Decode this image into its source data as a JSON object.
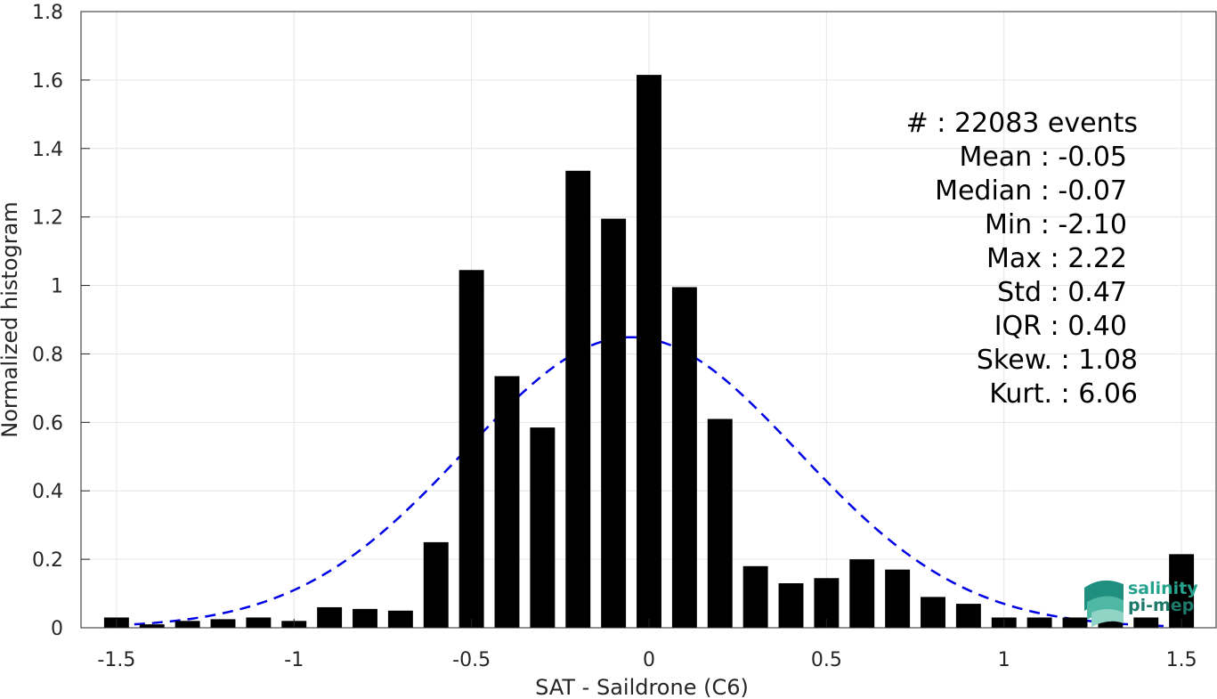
{
  "chart_data": {
    "type": "bar",
    "xlabel": "SAT - Saildrone (C6)",
    "ylabel": "Normalized histogram",
    "xlim": [
      -1.6,
      1.6
    ],
    "ylim": [
      0,
      1.8
    ],
    "xticks": [
      -1.5,
      -1,
      -0.5,
      0,
      0.5,
      1,
      1.5
    ],
    "xtick_labels": [
      "-1.5",
      "-1",
      "-0.5",
      "0",
      "0.5",
      "1",
      "1.5"
    ],
    "yticks": [
      0,
      0.2,
      0.4,
      0.6,
      0.8,
      1,
      1.2,
      1.4,
      1.6,
      1.8
    ],
    "ytick_labels": [
      "0",
      "0.2",
      "0.4",
      "0.6",
      "0.8",
      "1",
      "1.2",
      "1.4",
      "1.6",
      "1.8"
    ],
    "grid": true,
    "bar_width": 0.07,
    "bar_color": "#000000",
    "x": [
      -1.5,
      -1.4,
      -1.3,
      -1.2,
      -1.1,
      -1.0,
      -0.9,
      -0.8,
      -0.7,
      -0.6,
      -0.5,
      -0.4,
      -0.3,
      -0.2,
      -0.1,
      0.0,
      0.1,
      0.2,
      0.3,
      0.4,
      0.5,
      0.6,
      0.7,
      0.8,
      0.9,
      1.0,
      1.1,
      1.2,
      1.3,
      1.4,
      1.5
    ],
    "values": [
      0.03,
      0.01,
      0.02,
      0.025,
      0.03,
      0.02,
      0.06,
      0.055,
      0.05,
      0.25,
      1.045,
      0.735,
      0.585,
      1.335,
      1.195,
      1.615,
      0.995,
      0.61,
      0.18,
      0.13,
      0.145,
      0.2,
      0.17,
      0.09,
      0.07,
      0.03,
      0.03,
      0.03,
      0.04,
      0.03,
      0.215
    ],
    "fit": {
      "type": "normal",
      "mean": -0.05,
      "std": 0.47,
      "color": "#0000e6",
      "style": "dashed",
      "x_range": [
        -1.5,
        1.5
      ]
    },
    "annotations": [
      "#  : 22083 events",
      "Mean : -0.05",
      "Median : -0.07",
      "Min : -2.10",
      "Max : 2.22",
      "Std : 0.47",
      "IQR : 0.40",
      "Skew. : 1.08",
      "Kurt. : 6.06"
    ]
  },
  "logo": {
    "line1": "salinity",
    "line2": "pi-mep",
    "icon": "salinity-waves-logo-icon",
    "color": "#26a38f"
  }
}
